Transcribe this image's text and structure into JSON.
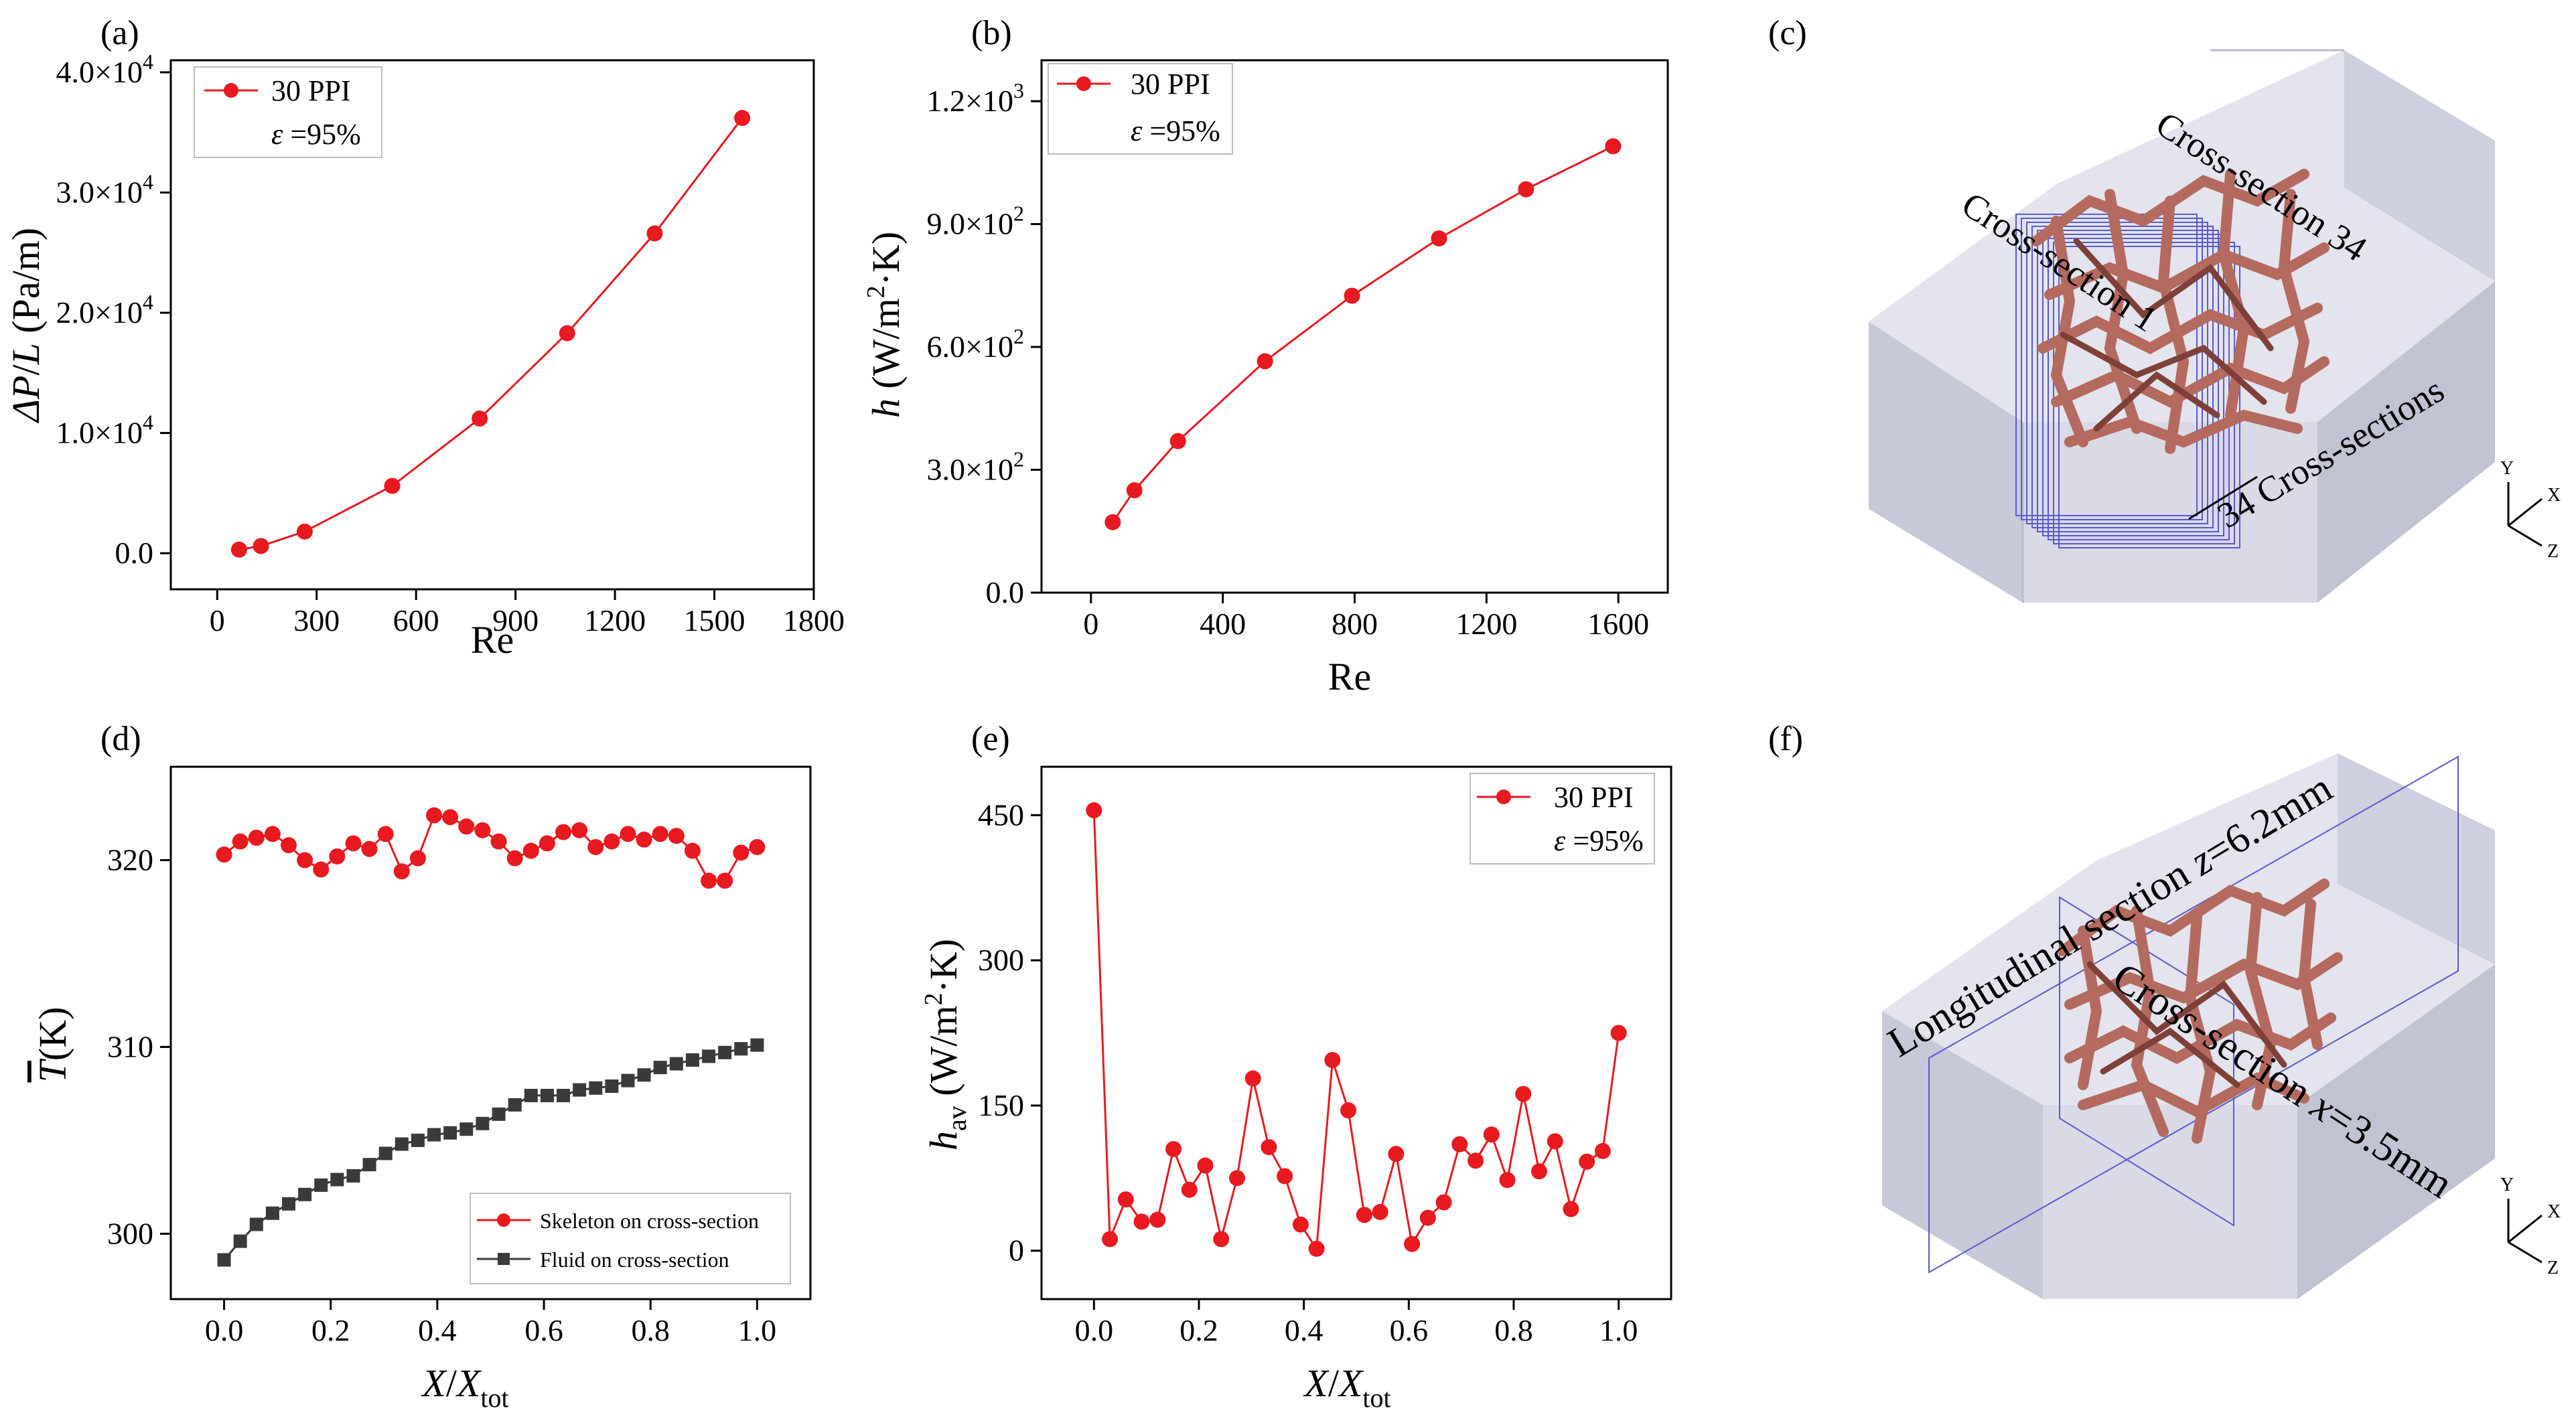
{
  "chart_data": [
    {
      "id": "a",
      "panel_label": "(a)",
      "type": "line",
      "xlabel": "Re",
      "ylabel_parts": [
        "ΔP",
        "/",
        "L",
        " (Pa/m)"
      ],
      "xlim": [
        -140,
        1800
      ],
      "ylim": [
        -3000,
        41000
      ],
      "xticks": [
        0,
        300,
        600,
        900,
        1200,
        1500,
        1800
      ],
      "xtick_labels": [
        "0",
        "300",
        "600",
        "900",
        "1200",
        "1500",
        "1800"
      ],
      "yticks": [
        0,
        10000,
        20000,
        30000,
        40000
      ],
      "ytick_labels": [
        {
          "base": "0.0",
          "exp": ""
        },
        {
          "base": "1.0×10",
          "exp": "4"
        },
        {
          "base": "2.0×10",
          "exp": "4"
        },
        {
          "base": "3.0×10",
          "exp": "4"
        },
        {
          "base": "4.0×10",
          "exp": "4"
        }
      ],
      "series": [
        {
          "name": "30 PPI",
          "color": "#e8191f",
          "marker": "circle",
          "x": [
            66,
            132,
            264,
            528,
            792,
            1056,
            1320,
            1584
          ],
          "y": [
            300,
            600,
            1800,
            5600,
            11200,
            18300,
            26600,
            36200
          ]
        }
      ],
      "legend": {
        "position": "top-left",
        "entries": [
          "30 PPI"
        ],
        "note_parts": [
          "ε",
          " =95%"
        ]
      }
    },
    {
      "id": "b",
      "panel_label": "(b)",
      "type": "line",
      "xlabel": "Re",
      "ylabel_parts": [
        "h",
        " (W/m",
        "2",
        "·K)"
      ],
      "xlim": [
        -150,
        1750
      ],
      "ylim": [
        0,
        1300
      ],
      "xticks": [
        0,
        400,
        800,
        1200,
        1600
      ],
      "xtick_labels": [
        "0",
        "400",
        "800",
        "1200",
        "1600"
      ],
      "yticks": [
        0,
        300,
        600,
        900,
        1200
      ],
      "ytick_labels": [
        {
          "base": "0.0",
          "exp": ""
        },
        {
          "base": "3.0×10",
          "exp": "2"
        },
        {
          "base": "6.0×10",
          "exp": "2"
        },
        {
          "base": "9.0×10",
          "exp": "2"
        },
        {
          "base": "1.2×10",
          "exp": "3"
        }
      ],
      "series": [
        {
          "name": "30 PPI",
          "color": "#e8191f",
          "marker": "circle",
          "x": [
            66,
            132,
            264,
            528,
            792,
            1056,
            1320,
            1584
          ],
          "y": [
            172,
            250,
            370,
            565,
            725,
            865,
            985,
            1090
          ]
        }
      ],
      "legend": {
        "position": "top-left",
        "entries": [
          "30 PPI"
        ],
        "note_parts": [
          "ε",
          " =95%"
        ]
      }
    },
    {
      "id": "d",
      "panel_label": "(d)",
      "type": "line",
      "xlabel_parts": [
        "X",
        "/",
        "X",
        "tot"
      ],
      "ylabel_parts": [
        "T",
        "(K)"
      ],
      "xlim": [
        -0.1,
        1.1
      ],
      "ylim": [
        296.5,
        325
      ],
      "xticks": [
        0,
        0.2,
        0.4,
        0.6,
        0.8,
        1.0
      ],
      "xtick_labels": [
        "0.0",
        "0.2",
        "0.4",
        "0.6",
        "0.8",
        "1.0"
      ],
      "yticks": [
        300,
        310,
        320
      ],
      "ytick_labels": [
        {
          "base": "300",
          "exp": ""
        },
        {
          "base": "310",
          "exp": ""
        },
        {
          "base": "320",
          "exp": ""
        }
      ],
      "series": [
        {
          "name": "Skeleton on cross-section",
          "color": "#e8191f",
          "marker": "circle",
          "x": [
            0,
            0.0303,
            0.0606,
            0.0909,
            0.1212,
            0.1515,
            0.1818,
            0.2121,
            0.2424,
            0.2727,
            0.303,
            0.3333,
            0.3636,
            0.3939,
            0.4242,
            0.4545,
            0.4848,
            0.5152,
            0.5455,
            0.5758,
            0.6061,
            0.6364,
            0.6667,
            0.697,
            0.7273,
            0.7576,
            0.7879,
            0.8182,
            0.8485,
            0.8788,
            0.9091,
            0.9394,
            0.9697,
            1.0
          ],
          "y": [
            320.3,
            321.0,
            321.2,
            321.4,
            320.8,
            320.0,
            319.5,
            320.2,
            320.9,
            320.6,
            321.4,
            319.4,
            320.1,
            322.4,
            322.3,
            321.8,
            321.6,
            321.0,
            320.1,
            320.5,
            320.9,
            321.5,
            321.6,
            320.7,
            321.0,
            321.4,
            321.1,
            321.4,
            321.3,
            320.5,
            318.9,
            318.9,
            320.4,
            320.7
          ]
        },
        {
          "name": "Fluid on cross-section",
          "color": "#3a3a3a",
          "marker": "square",
          "x": [
            0,
            0.0303,
            0.0606,
            0.0909,
            0.1212,
            0.1515,
            0.1818,
            0.2121,
            0.2424,
            0.2727,
            0.303,
            0.3333,
            0.3636,
            0.3939,
            0.4242,
            0.4545,
            0.4848,
            0.5152,
            0.5455,
            0.5758,
            0.6061,
            0.6364,
            0.6667,
            0.697,
            0.7273,
            0.7576,
            0.7879,
            0.8182,
            0.8485,
            0.8788,
            0.9091,
            0.9394,
            0.9697,
            1.0
          ],
          "y": [
            298.6,
            299.6,
            300.5,
            301.1,
            301.6,
            302.1,
            302.6,
            302.9,
            303.1,
            303.7,
            304.3,
            304.8,
            305.0,
            305.3,
            305.4,
            305.6,
            305.9,
            306.4,
            306.9,
            307.4,
            307.4,
            307.4,
            307.7,
            307.8,
            307.9,
            308.2,
            308.5,
            308.9,
            309.1,
            309.3,
            309.5,
            309.7,
            309.9,
            310.1
          ]
        }
      ],
      "legend": {
        "position": "bottom-right",
        "entries": [
          "Skeleton on cross-section",
          "Fluid on cross-section"
        ]
      }
    },
    {
      "id": "e",
      "panel_label": "(e)",
      "type": "line",
      "xlabel_parts": [
        "X",
        "/",
        "X",
        "tot"
      ],
      "ylabel_parts": [
        "h",
        "av",
        " (W/m",
        "2",
        "·K)"
      ],
      "xlim": [
        -0.1,
        1.1
      ],
      "ylim": [
        -50,
        500
      ],
      "xticks": [
        0,
        0.2,
        0.4,
        0.6,
        0.8,
        1.0
      ],
      "xtick_labels": [
        "0.0",
        "0.2",
        "0.4",
        "0.6",
        "0.8",
        "1.0"
      ],
      "yticks": [
        0,
        150,
        300,
        450
      ],
      "ytick_labels": [
        {
          "base": "0",
          "exp": ""
        },
        {
          "base": "150",
          "exp": ""
        },
        {
          "base": "300",
          "exp": ""
        },
        {
          "base": "450",
          "exp": ""
        }
      ],
      "series": [
        {
          "name": "30 PPI",
          "color": "#e8191f",
          "marker": "circle",
          "x": [
            0,
            0.0303,
            0.0606,
            0.0909,
            0.1212,
            0.1515,
            0.1818,
            0.2121,
            0.2424,
            0.2727,
            0.303,
            0.3333,
            0.3636,
            0.3939,
            0.4242,
            0.4545,
            0.4848,
            0.5152,
            0.5455,
            0.5758,
            0.6061,
            0.6364,
            0.6667,
            0.697,
            0.7273,
            0.7576,
            0.7879,
            0.8182,
            0.8485,
            0.8788,
            0.9091,
            0.9394,
            0.9697,
            1.0
          ],
          "y": [
            455,
            12,
            53,
            30,
            32,
            105,
            63,
            88,
            12,
            75,
            178,
            107,
            77,
            27,
            2,
            197,
            145,
            37,
            40,
            100,
            7,
            34,
            50,
            110,
            93,
            120,
            73,
            162,
            82,
            113,
            43,
            92,
            103,
            225
          ]
        }
      ],
      "legend": {
        "position": "top-right",
        "entries": [
          "30 PPI"
        ],
        "note_parts": [
          "ε",
          " =95%"
        ]
      }
    }
  ],
  "figure_c": {
    "panel_label": "(c)",
    "labels": {
      "cs34": "Cross-section 34",
      "cs1": "Cross-section 1",
      "count": "34 Cross-sections"
    },
    "axes": {
      "y": "Y",
      "x": "X",
      "z": "Z"
    }
  },
  "figure_f": {
    "panel_label": "(f)",
    "labels": {
      "longitudinal": "Longitudinal section ",
      "longitudinal_var": "z",
      "longitudinal_val": "=6.2mm",
      "cross": "Cross-section ",
      "cross_var": "x",
      "cross_val": "=3.5mm"
    },
    "axes": {
      "y": "Y",
      "x": "X",
      "z": "Z"
    }
  },
  "colors": {
    "red": "#e8191f",
    "dark": "#3a3a3a",
    "box": "#d4d6e3",
    "pipe": "#b46a5e"
  }
}
